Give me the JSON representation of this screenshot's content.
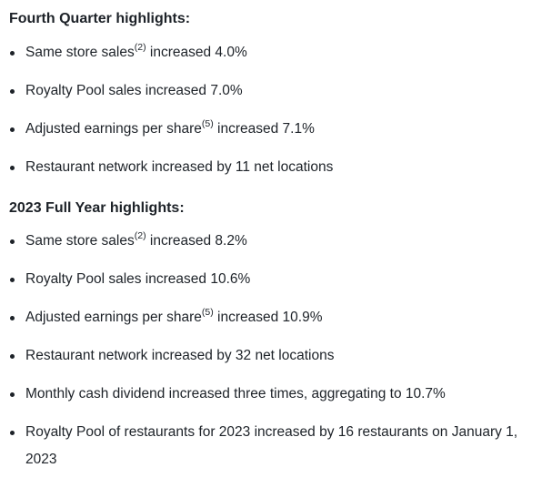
{
  "q4": {
    "heading": "Fourth Quarter highlights:",
    "items": [
      {
        "pre": "Same store sales",
        "sup": "(2)",
        "post": " increased 4.0%"
      },
      {
        "pre": "Royalty Pool sales increased 7.0%",
        "sup": "",
        "post": ""
      },
      {
        "pre": "Adjusted earnings per share",
        "sup": "(5)",
        "post": " increased 7.1%"
      },
      {
        "pre": "Restaurant network increased by 11 net locations",
        "sup": "",
        "post": ""
      }
    ]
  },
  "fy2023": {
    "heading": "2023 Full Year highlights:",
    "items": [
      {
        "pre": "Same store sales",
        "sup": "(2)",
        "post": " increased 8.2%"
      },
      {
        "pre": "Royalty Pool sales increased 10.6%",
        "sup": "",
        "post": ""
      },
      {
        "pre": "Adjusted earnings per share",
        "sup": "(5)",
        "post": " increased 10.9%"
      },
      {
        "pre": "Restaurant network increased by 32 net locations",
        "sup": "",
        "post": ""
      },
      {
        "pre": "Monthly cash dividend increased three times, aggregating to 10.7%",
        "sup": "",
        "post": ""
      },
      {
        "pre": "Royalty Pool of restaurants for 2023 increased by 16 restaurants on January 1, 2023",
        "sup": "",
        "post": ""
      }
    ]
  }
}
